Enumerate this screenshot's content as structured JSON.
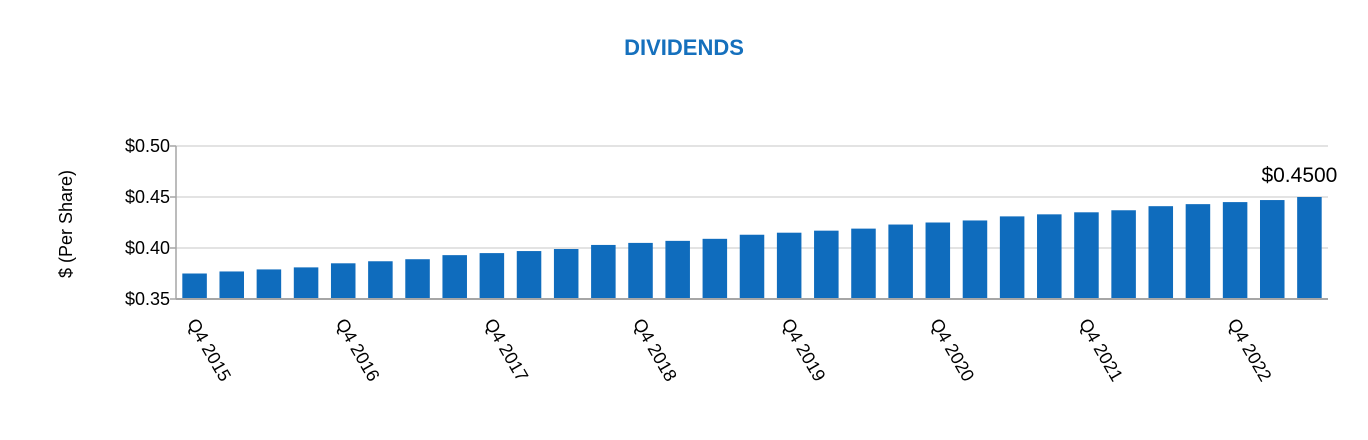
{
  "chart_data": {
    "type": "bar",
    "title": "DIVIDENDS",
    "y_label": "$ (Per Share)",
    "categories": [
      "Q4 2015",
      null,
      null,
      null,
      "Q4 2016",
      null,
      null,
      null,
      "Q4 2017",
      null,
      null,
      null,
      "Q4 2018",
      null,
      null,
      null,
      "Q4 2019",
      null,
      null,
      null,
      "Q4 2020",
      null,
      null,
      null,
      "Q4 2021",
      null,
      null,
      null,
      "Q4 2022",
      null,
      null
    ],
    "values": [
      0.375,
      0.377,
      0.379,
      0.381,
      0.385,
      0.387,
      0.389,
      0.393,
      0.395,
      0.397,
      0.399,
      0.403,
      0.405,
      0.407,
      0.409,
      0.413,
      0.415,
      0.417,
      0.419,
      0.423,
      0.425,
      0.427,
      0.431,
      0.433,
      0.435,
      0.437,
      0.441,
      0.443,
      0.445,
      0.447,
      0.45
    ],
    "value_labels": [
      null,
      null,
      null,
      null,
      null,
      null,
      null,
      null,
      null,
      null,
      null,
      null,
      null,
      null,
      null,
      null,
      null,
      null,
      null,
      null,
      null,
      null,
      null,
      null,
      null,
      null,
      null,
      null,
      null,
      null,
      "$0.4500"
    ],
    "color": "#0f6cbd",
    "ylim": [
      0.35,
      0.5
    ],
    "yticks": [
      {
        "value": 0.35,
        "label": "$0.35"
      },
      {
        "value": 0.4,
        "label": "$0.40"
      },
      {
        "value": 0.45,
        "label": "$0.45"
      },
      {
        "value": 0.5,
        "label": "$0.50"
      }
    ],
    "grid": true
  }
}
